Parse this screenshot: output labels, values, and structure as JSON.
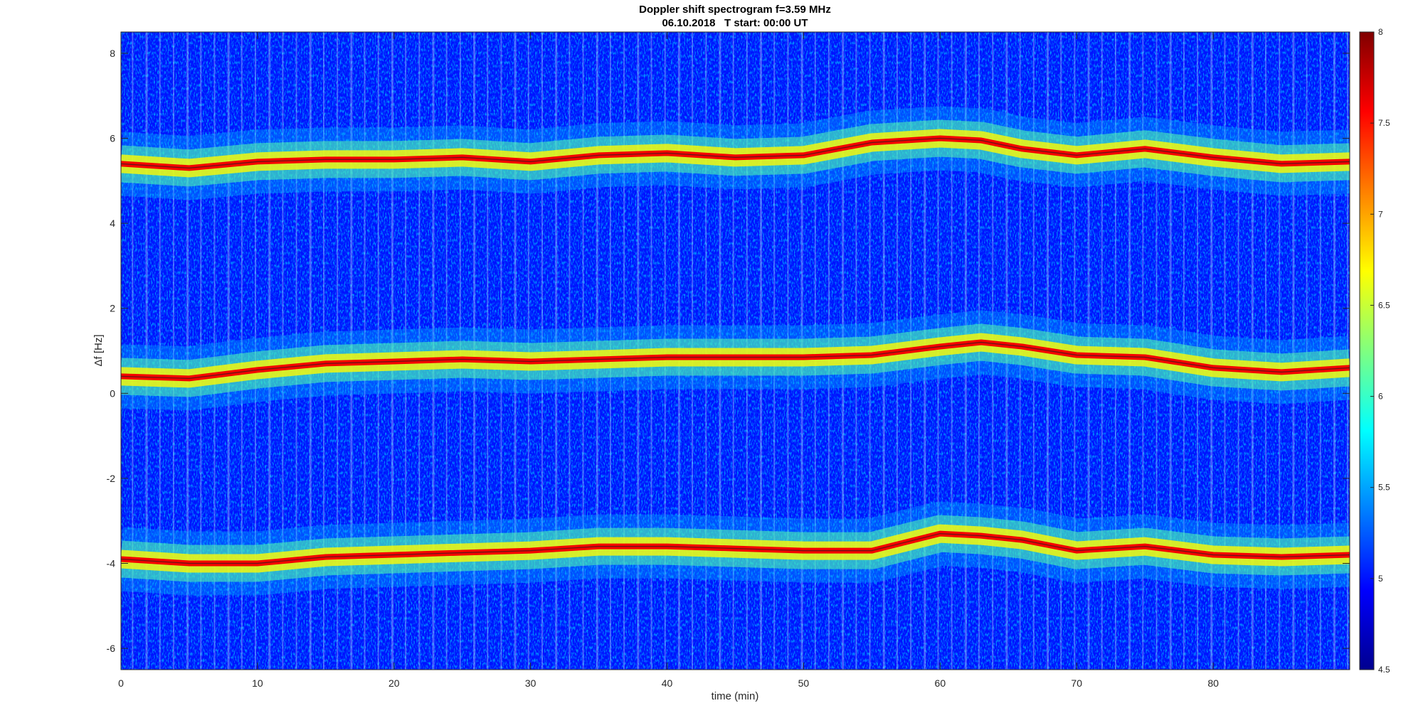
{
  "chart_data": {
    "type": "heatmap",
    "title": "Doppler shift spectrogram f=3.59 MHz",
    "subtitle": "06.10.2018   T start: 00:00 UT",
    "xlabel": "time (min)",
    "ylabel": "Δf [Hz]",
    "xlim": [
      0,
      90
    ],
    "ylim": [
      -6.5,
      8.5
    ],
    "xticks": [
      0,
      10,
      20,
      30,
      40,
      50,
      60,
      70,
      80
    ],
    "yticks": [
      -6,
      -4,
      -2,
      0,
      2,
      4,
      6,
      8
    ],
    "colormap": "jet",
    "clim": [
      4.5,
      8
    ],
    "colorbar_ticks": [
      4.5,
      5,
      5.5,
      6,
      6.5,
      7,
      7.5,
      8
    ],
    "background_level": 5.0,
    "grid": false,
    "series": [
      {
        "x": [
          0,
          5,
          10,
          15,
          20,
          25,
          30,
          35,
          40,
          45,
          50,
          55,
          60,
          63,
          66,
          70,
          75,
          80,
          85,
          90
        ],
        "y": [
          0.4,
          0.35,
          0.55,
          0.7,
          0.75,
          0.8,
          0.75,
          0.8,
          0.85,
          0.85,
          0.85,
          0.9,
          1.1,
          1.2,
          1.1,
          0.9,
          0.85,
          0.6,
          0.5,
          0.6
        ]
      },
      {
        "x": [
          0,
          5,
          10,
          15,
          20,
          25,
          30,
          35,
          40,
          45,
          50,
          55,
          60,
          63,
          66,
          70,
          75,
          80,
          85,
          90
        ],
        "y": [
          5.4,
          5.3,
          5.45,
          5.5,
          5.5,
          5.55,
          5.45,
          5.6,
          5.65,
          5.55,
          5.6,
          5.9,
          6.0,
          5.95,
          5.75,
          5.6,
          5.75,
          5.55,
          5.4,
          5.45
        ]
      },
      {
        "x": [
          0,
          5,
          10,
          15,
          20,
          25,
          30,
          35,
          40,
          45,
          50,
          55,
          60,
          63,
          66,
          70,
          75,
          80,
          85,
          90
        ],
        "y": [
          -3.9,
          -4.0,
          -4.0,
          -3.85,
          -3.8,
          -3.75,
          -3.7,
          -3.6,
          -3.6,
          -3.65,
          -3.7,
          -3.7,
          -3.3,
          -3.35,
          -3.45,
          -3.7,
          -3.6,
          -3.8,
          -3.85,
          -3.8
        ]
      }
    ]
  }
}
